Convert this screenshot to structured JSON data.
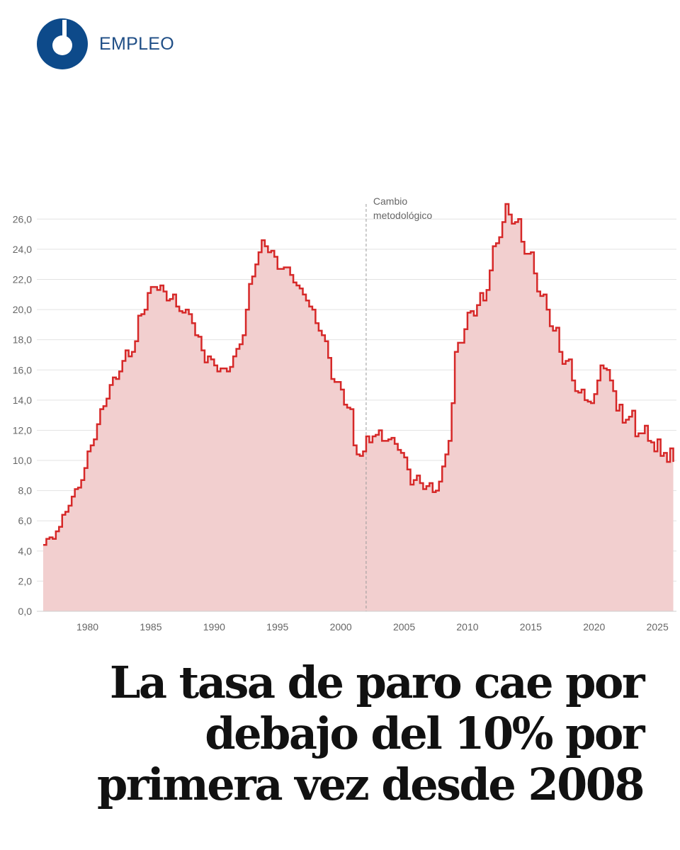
{
  "header": {
    "section_label": "EMPLEO",
    "logo_icon": "ring-logo-icon",
    "brand_color": "#0d4a8a"
  },
  "headline": {
    "text": "La tasa de paro cae por debajo del 10% por primera vez desde 2008"
  },
  "chart_data": {
    "type": "area",
    "title": "",
    "xlabel": "",
    "ylabel": "",
    "xlim": [
      1976,
      2026.5
    ],
    "ylim": [
      0,
      27
    ],
    "x_ticks": [
      1980,
      1985,
      1990,
      1995,
      2000,
      2005,
      2010,
      2015,
      2020,
      2025
    ],
    "y_ticks": [
      "0,0",
      "2,0",
      "4,0",
      "6,0",
      "8,0",
      "10,0",
      "12,0",
      "14,0",
      "16,0",
      "18,0",
      "20,0",
      "22,0",
      "24,0",
      "26,0"
    ],
    "y_tick_values": [
      0,
      2,
      4,
      6,
      8,
      10,
      12,
      14,
      16,
      18,
      20,
      22,
      24,
      26
    ],
    "grid": true,
    "legend": "none",
    "line_color": "#d62828",
    "fill_color": "#f2cfcf",
    "annotation": {
      "x": 2002,
      "label_lines": [
        "Cambio",
        "metodológico"
      ]
    },
    "series": [
      {
        "step": true,
        "points": [
          [
            1976.5,
            4.4
          ],
          [
            1976.75,
            4.8
          ],
          [
            1977.0,
            4.9
          ],
          [
            1977.25,
            4.8
          ],
          [
            1977.5,
            5.3
          ],
          [
            1977.75,
            5.6
          ],
          [
            1978.0,
            6.4
          ],
          [
            1978.25,
            6.6
          ],
          [
            1978.5,
            7.0
          ],
          [
            1978.75,
            7.6
          ],
          [
            1979.0,
            8.1
          ],
          [
            1979.25,
            8.2
          ],
          [
            1979.5,
            8.7
          ],
          [
            1979.75,
            9.5
          ],
          [
            1980.0,
            10.6
          ],
          [
            1980.25,
            11.0
          ],
          [
            1980.5,
            11.4
          ],
          [
            1980.75,
            12.4
          ],
          [
            1981.0,
            13.4
          ],
          [
            1981.25,
            13.6
          ],
          [
            1981.5,
            14.1
          ],
          [
            1981.75,
            15.0
          ],
          [
            1982.0,
            15.5
          ],
          [
            1982.25,
            15.4
          ],
          [
            1982.5,
            15.9
          ],
          [
            1982.75,
            16.6
          ],
          [
            1983.0,
            17.3
          ],
          [
            1983.25,
            16.9
          ],
          [
            1983.5,
            17.2
          ],
          [
            1983.75,
            17.9
          ],
          [
            1984.0,
            19.6
          ],
          [
            1984.25,
            19.7
          ],
          [
            1984.5,
            20.0
          ],
          [
            1984.75,
            21.1
          ],
          [
            1985.0,
            21.5
          ],
          [
            1985.25,
            21.5
          ],
          [
            1985.5,
            21.3
          ],
          [
            1985.75,
            21.6
          ],
          [
            1986.0,
            21.2
          ],
          [
            1986.25,
            20.6
          ],
          [
            1986.5,
            20.7
          ],
          [
            1986.75,
            21.0
          ],
          [
            1987.0,
            20.2
          ],
          [
            1987.25,
            19.9
          ],
          [
            1987.5,
            19.8
          ],
          [
            1987.75,
            20.0
          ],
          [
            1988.0,
            19.7
          ],
          [
            1988.25,
            19.1
          ],
          [
            1988.5,
            18.3
          ],
          [
            1988.75,
            18.2
          ],
          [
            1989.0,
            17.3
          ],
          [
            1989.25,
            16.5
          ],
          [
            1989.5,
            16.9
          ],
          [
            1989.75,
            16.7
          ],
          [
            1990.0,
            16.3
          ],
          [
            1990.25,
            15.9
          ],
          [
            1990.5,
            16.1
          ],
          [
            1990.75,
            16.1
          ],
          [
            1991.0,
            15.9
          ],
          [
            1991.25,
            16.2
          ],
          [
            1991.5,
            16.9
          ],
          [
            1991.75,
            17.4
          ],
          [
            1992.0,
            17.7
          ],
          [
            1992.25,
            18.3
          ],
          [
            1992.5,
            20.0
          ],
          [
            1992.75,
            21.7
          ],
          [
            1993.0,
            22.2
          ],
          [
            1993.25,
            23.0
          ],
          [
            1993.5,
            23.8
          ],
          [
            1993.75,
            24.6
          ],
          [
            1994.0,
            24.2
          ],
          [
            1994.25,
            23.8
          ],
          [
            1994.5,
            23.9
          ],
          [
            1994.75,
            23.5
          ],
          [
            1995.0,
            22.7
          ],
          [
            1995.25,
            22.7
          ],
          [
            1995.5,
            22.8
          ],
          [
            1995.75,
            22.8
          ],
          [
            1996.0,
            22.3
          ],
          [
            1996.25,
            21.8
          ],
          [
            1996.5,
            21.6
          ],
          [
            1996.75,
            21.4
          ],
          [
            1997.0,
            21.0
          ],
          [
            1997.25,
            20.6
          ],
          [
            1997.5,
            20.2
          ],
          [
            1997.75,
            20.0
          ],
          [
            1998.0,
            19.1
          ],
          [
            1998.25,
            18.6
          ],
          [
            1998.5,
            18.3
          ],
          [
            1998.75,
            17.9
          ],
          [
            1999.0,
            16.8
          ],
          [
            1999.25,
            15.4
          ],
          [
            1999.5,
            15.2
          ],
          [
            1999.75,
            15.2
          ],
          [
            2000.0,
            14.7
          ],
          [
            2000.25,
            13.7
          ],
          [
            2000.5,
            13.5
          ],
          [
            2000.75,
            13.4
          ],
          [
            2001.0,
            11.0
          ],
          [
            2001.25,
            10.4
          ],
          [
            2001.5,
            10.3
          ],
          [
            2001.75,
            10.6
          ],
          [
            2002.0,
            11.6
          ],
          [
            2002.25,
            11.2
          ],
          [
            2002.5,
            11.6
          ],
          [
            2002.75,
            11.7
          ],
          [
            2003.0,
            12.0
          ],
          [
            2003.25,
            11.3
          ],
          [
            2003.5,
            11.3
          ],
          [
            2003.75,
            11.4
          ],
          [
            2004.0,
            11.5
          ],
          [
            2004.25,
            11.1
          ],
          [
            2004.5,
            10.7
          ],
          [
            2004.75,
            10.5
          ],
          [
            2005.0,
            10.2
          ],
          [
            2005.25,
            9.4
          ],
          [
            2005.5,
            8.4
          ],
          [
            2005.75,
            8.7
          ],
          [
            2006.0,
            9.0
          ],
          [
            2006.25,
            8.5
          ],
          [
            2006.5,
            8.1
          ],
          [
            2006.75,
            8.3
          ],
          [
            2007.0,
            8.5
          ],
          [
            2007.25,
            7.9
          ],
          [
            2007.5,
            8.0
          ],
          [
            2007.75,
            8.6
          ],
          [
            2008.0,
            9.6
          ],
          [
            2008.25,
            10.4
          ],
          [
            2008.5,
            11.3
          ],
          [
            2008.75,
            13.8
          ],
          [
            2009.0,
            17.2
          ],
          [
            2009.25,
            17.8
          ],
          [
            2009.5,
            17.8
          ],
          [
            2009.75,
            18.7
          ],
          [
            2010.0,
            19.8
          ],
          [
            2010.25,
            19.9
          ],
          [
            2010.5,
            19.6
          ],
          [
            2010.75,
            20.3
          ],
          [
            2011.0,
            21.1
          ],
          [
            2011.25,
            20.6
          ],
          [
            2011.5,
            21.3
          ],
          [
            2011.75,
            22.6
          ],
          [
            2012.0,
            24.2
          ],
          [
            2012.25,
            24.4
          ],
          [
            2012.5,
            24.8
          ],
          [
            2012.75,
            25.8
          ],
          [
            2013.0,
            27.0
          ],
          [
            2013.25,
            26.3
          ],
          [
            2013.5,
            25.7
          ],
          [
            2013.75,
            25.8
          ],
          [
            2014.0,
            26.0
          ],
          [
            2014.25,
            24.5
          ],
          [
            2014.5,
            23.7
          ],
          [
            2014.75,
            23.7
          ],
          [
            2015.0,
            23.8
          ],
          [
            2015.25,
            22.4
          ],
          [
            2015.5,
            21.2
          ],
          [
            2015.75,
            20.9
          ],
          [
            2016.0,
            21.0
          ],
          [
            2016.25,
            20.0
          ],
          [
            2016.5,
            18.9
          ],
          [
            2016.75,
            18.6
          ],
          [
            2017.0,
            18.8
          ],
          [
            2017.25,
            17.2
          ],
          [
            2017.5,
            16.4
          ],
          [
            2017.75,
            16.6
          ],
          [
            2018.0,
            16.7
          ],
          [
            2018.25,
            15.3
          ],
          [
            2018.5,
            14.6
          ],
          [
            2018.75,
            14.5
          ],
          [
            2019.0,
            14.7
          ],
          [
            2019.25,
            14.0
          ],
          [
            2019.5,
            13.9
          ],
          [
            2019.75,
            13.8
          ],
          [
            2020.0,
            14.4
          ],
          [
            2020.25,
            15.3
          ],
          [
            2020.5,
            16.3
          ],
          [
            2020.75,
            16.1
          ],
          [
            2021.0,
            16.0
          ],
          [
            2021.25,
            15.3
          ],
          [
            2021.5,
            14.6
          ],
          [
            2021.75,
            13.3
          ],
          [
            2022.0,
            13.7
          ],
          [
            2022.25,
            12.5
          ],
          [
            2022.5,
            12.7
          ],
          [
            2022.75,
            12.9
          ],
          [
            2023.0,
            13.3
          ],
          [
            2023.25,
            11.6
          ],
          [
            2023.5,
            11.8
          ],
          [
            2023.75,
            11.8
          ],
          [
            2024.0,
            12.3
          ],
          [
            2024.25,
            11.3
          ],
          [
            2024.5,
            11.2
          ],
          [
            2024.75,
            10.6
          ],
          [
            2025.0,
            11.4
          ],
          [
            2025.25,
            10.3
          ],
          [
            2025.5,
            10.5
          ],
          [
            2025.75,
            9.9
          ],
          [
            2026.0,
            10.8
          ],
          [
            2026.25,
            9.9
          ]
        ]
      }
    ]
  }
}
